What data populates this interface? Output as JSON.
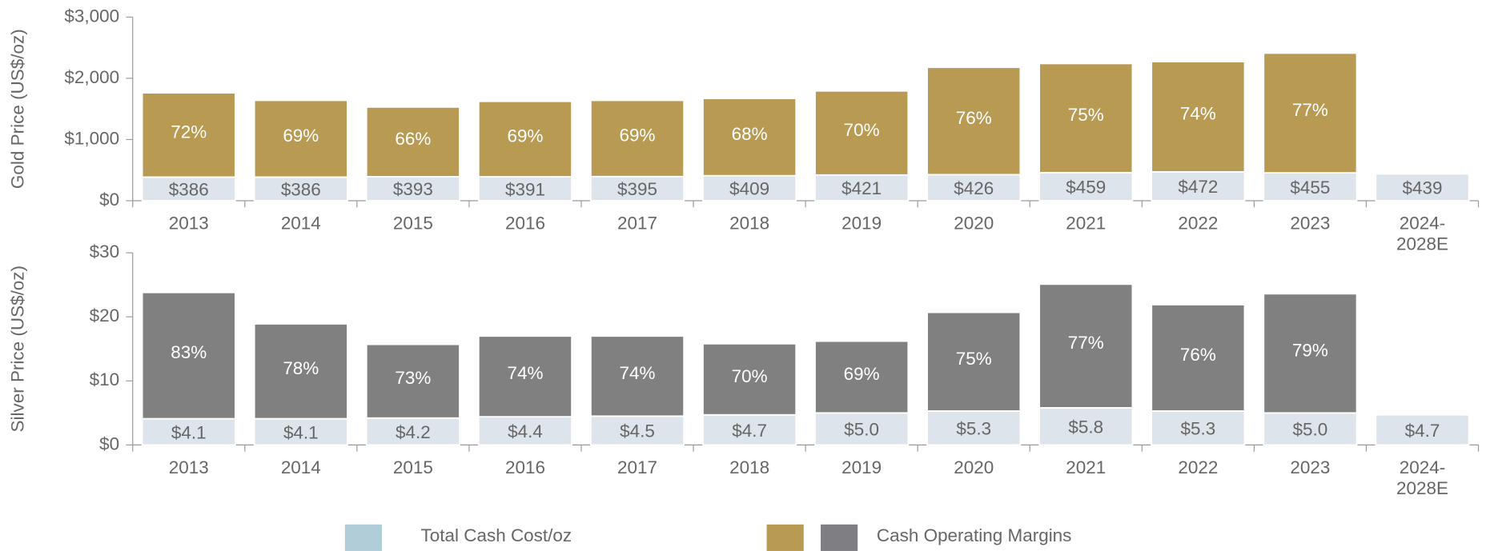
{
  "chart_data": [
    {
      "type": "bar",
      "stacked": true,
      "ylabel": "Gold Price (US$/oz)",
      "categories": [
        "2013",
        "2014",
        "2015",
        "2016",
        "2017",
        "2018",
        "2019",
        "2020",
        "2021",
        "2022",
        "2023",
        "2024-\n2028E"
      ],
      "ylim": [
        0,
        3000
      ],
      "yticks": [
        {
          "value": 0,
          "label": "$0"
        },
        {
          "value": 1000,
          "label": "$1,000"
        },
        {
          "value": 2000,
          "label": "$2,000"
        },
        {
          "value": 3000,
          "label": "$3,000"
        }
      ],
      "series": [
        {
          "color": "#dde4eb",
          "label_color": "#666666",
          "values": [
            386,
            386,
            393,
            391,
            395,
            409,
            421,
            426,
            459,
            472,
            455,
            439
          ],
          "value_labels": [
            "$386",
            "$386",
            "$393",
            "$391",
            "$395",
            "$409",
            "$421",
            "$426",
            "$459",
            "$472",
            "$455",
            "$439"
          ]
        },
        {
          "color": "#b89a52",
          "label_color": "#ffffff",
          "values": [
            1376,
            1253,
            1137,
            1232,
            1244,
            1261,
            1372,
            1753,
            1782,
            1800,
            1956,
            null
          ],
          "margin_labels": [
            "72%",
            "69%",
            "66%",
            "69%",
            "69%",
            "68%",
            "70%",
            "76%",
            "75%",
            "74%",
            "77%",
            null
          ]
        }
      ]
    },
    {
      "type": "bar",
      "stacked": true,
      "ylabel": "Silver Price (US$/oz)",
      "categories": [
        "2013",
        "2014",
        "2015",
        "2016",
        "2017",
        "2018",
        "2019",
        "2020",
        "2021",
        "2022",
        "2023",
        "2024-\n2028E"
      ],
      "ylim": [
        0,
        30
      ],
      "yticks": [
        {
          "value": 0,
          "label": "$0"
        },
        {
          "value": 10,
          "label": "$10"
        },
        {
          "value": 20,
          "label": "$20"
        },
        {
          "value": 30,
          "label": "$30"
        }
      ],
      "series": [
        {
          "color": "#dde4eb",
          "label_color": "#666666",
          "values": [
            4.1,
            4.1,
            4.2,
            4.4,
            4.5,
            4.7,
            5.0,
            5.3,
            5.8,
            5.3,
            5.0,
            4.7
          ],
          "value_labels": [
            "$4.1",
            "$4.1",
            "$4.2",
            "$4.4",
            "$4.5",
            "$4.7",
            "$5.0",
            "$5.3",
            "$5.8",
            "$5.3",
            "$5.0",
            "$4.7"
          ]
        },
        {
          "color": "#808080",
          "label_color": "#ffffff",
          "values": [
            19.7,
            14.8,
            11.5,
            12.6,
            12.5,
            11.1,
            11.2,
            15.4,
            19.3,
            16.6,
            18.6,
            null
          ],
          "margin_labels": [
            "83%",
            "78%",
            "73%",
            "74%",
            "74%",
            "70%",
            "69%",
            "75%",
            "77%",
            "76%",
            "79%",
            null
          ]
        }
      ]
    }
  ],
  "legend": [
    {
      "name": "Total Cash Cost/oz",
      "colors": [
        "#b0cdd8"
      ]
    },
    {
      "name": "Cash Operating Margins",
      "colors": [
        "#b89a52",
        "#7f7f83"
      ]
    }
  ]
}
